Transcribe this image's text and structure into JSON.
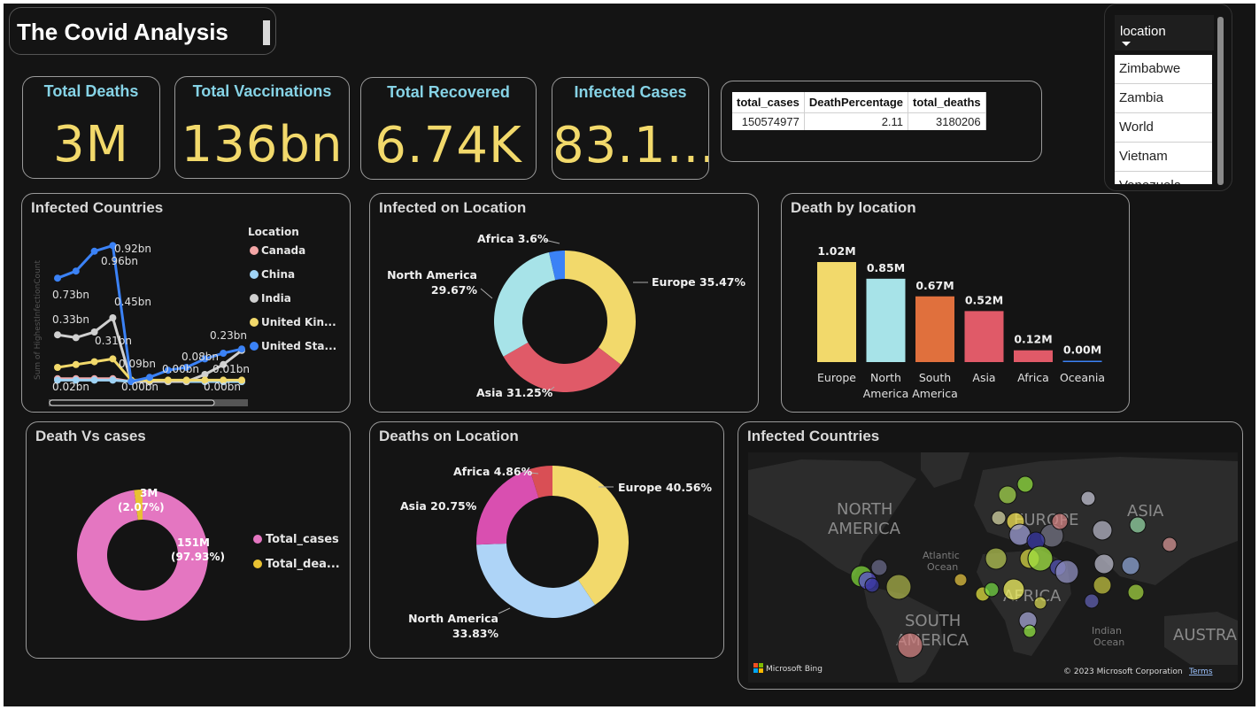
{
  "header": {
    "title": "The Covid Analysis"
  },
  "kpis": [
    {
      "label": "Total Deaths",
      "value": "3M"
    },
    {
      "label": "Total Vaccinations",
      "value": "136bn"
    },
    {
      "label": "Total Recovered",
      "value": "6.74K"
    },
    {
      "label": "Infected Cases",
      "value": "83.1..."
    }
  ],
  "summary_table": {
    "headers": [
      "total_cases",
      "DeathPercentage",
      "total_deaths"
    ],
    "row": [
      "150574977",
      "2.11",
      "3180206"
    ]
  },
  "slicer": {
    "title": "location",
    "items": [
      "Zimbabwe",
      "Zambia",
      "World",
      "Vietnam",
      "Venezuela"
    ]
  },
  "colors": {
    "background": "#141414",
    "kpi_label": "#86d3e6",
    "kpi_value": "#f2d96b",
    "europe": "#f2d96b",
    "north_america": "#a7e3e8",
    "south_america": "#e0703d",
    "asia": "#e05a68",
    "africa": "#e05a68",
    "oceania": "#3b82f6",
    "total_cases": "#e476c1",
    "total_deaths": "#e8c132"
  },
  "chart_data": [
    {
      "id": "infected-countries-line",
      "type": "line",
      "title": "Infected Countries",
      "ylabel": "Sum of HighestInfectionCount",
      "legend_title": "Location",
      "legend_position": "right",
      "ylim": [
        0,
        1.0
      ],
      "x": [
        1,
        2,
        3,
        4,
        5,
        6,
        7,
        8,
        9,
        10,
        11
      ],
      "series": [
        {
          "name": "Canada",
          "color": "#f4a6a6",
          "values": [
            0.02,
            0.02,
            0.02,
            0.02,
            0.0,
            0.0,
            0.0,
            0.0,
            0.0,
            0.0,
            0.0
          ]
        },
        {
          "name": "China",
          "color": "#9fd3f5",
          "values": [
            0.01,
            0.01,
            0.01,
            0.01,
            0.0,
            0.0,
            0.0,
            0.0,
            0.0,
            0.0,
            0.0
          ]
        },
        {
          "name": "India",
          "color": "#d0d0d0",
          "values": [
            0.33,
            0.31,
            0.35,
            0.45,
            0.0,
            0.0,
            0.0,
            0.0,
            0.05,
            0.12,
            0.22
          ]
        },
        {
          "name": "United Kin...",
          "color": "#f2d96b",
          "values": [
            0.1,
            0.12,
            0.14,
            0.16,
            0.01,
            0.01,
            0.01,
            0.01,
            0.01,
            0.01,
            0.01
          ]
        },
        {
          "name": "United Sta...",
          "color": "#3b82f6",
          "values": [
            0.73,
            0.78,
            0.92,
            0.96,
            0.0,
            0.03,
            0.08,
            0.1,
            0.16,
            0.2,
            0.23
          ]
        }
      ],
      "point_labels": [
        "0.92bn",
        "0.96bn",
        "0.73bn",
        "0.45bn",
        "0.33bn",
        "0.31bn",
        "0.23bn",
        "0.08bn",
        "0.00bn",
        "0.01bn",
        "0.09bn",
        "0.02bn",
        "0.00bn",
        "0.00bn"
      ]
    },
    {
      "id": "infected-on-location",
      "type": "pie",
      "title": "Infected on Location",
      "slices": [
        {
          "name": "Europe",
          "value": 35.47,
          "label": "Europe 35.47%",
          "color": "#f2d96b"
        },
        {
          "name": "Asia",
          "value": 31.25,
          "label": "Asia 31.25%",
          "color": "#e05a68"
        },
        {
          "name": "North America",
          "value": 29.67,
          "label": "North America 29.67%",
          "color": "#a7e3e8"
        },
        {
          "name": "Africa",
          "value": 3.6,
          "label": "Africa 3.6%",
          "color": "#3b82f6"
        }
      ]
    },
    {
      "id": "death-by-location",
      "type": "bar",
      "title": "Death by location",
      "categories": [
        "Europe",
        "North America",
        "South America",
        "Asia",
        "Africa",
        "Oceania"
      ],
      "category_lines": [
        [
          "Europe"
        ],
        [
          "North",
          "America"
        ],
        [
          "South",
          "America"
        ],
        [
          "Asia"
        ],
        [
          "Africa"
        ],
        [
          "Oceania"
        ]
      ],
      "values": [
        1.02,
        0.85,
        0.67,
        0.52,
        0.12,
        0.0
      ],
      "value_labels": [
        "1.02M",
        "0.85M",
        "0.67M",
        "0.52M",
        "0.12M",
        "0.00M"
      ],
      "colors": [
        "#f2d96b",
        "#a7e3e8",
        "#e0703d",
        "#e05a68",
        "#e05a68",
        "#3b82f6"
      ],
      "ylim": [
        0,
        1.02
      ]
    },
    {
      "id": "death-vs-cases",
      "type": "pie",
      "title": "Death Vs cases",
      "legend_position": "right",
      "slices": [
        {
          "name": "Total_cases",
          "value": 97.93,
          "label": "151M",
          "sublabel": "(97.93%)",
          "color": "#e476c1"
        },
        {
          "name": "Total_dea...",
          "value": 2.07,
          "label": "3M",
          "sublabel": "(2.07%)",
          "color": "#e8c132"
        }
      ]
    },
    {
      "id": "deaths-on-location",
      "type": "pie",
      "title": "Deaths on Location",
      "slices": [
        {
          "name": "Europe",
          "value": 40.56,
          "label": "Europe 40.56%",
          "color": "#f2d96b"
        },
        {
          "name": "North America",
          "value": 33.83,
          "label": "North America 33.83%",
          "color": "#aed4f7"
        },
        {
          "name": "Asia",
          "value": 20.75,
          "label": "Asia 20.75%",
          "color": "#d94fb0"
        },
        {
          "name": "Africa",
          "value": 4.86,
          "label": "Africa 4.86%",
          "color": "#d94f55"
        }
      ]
    }
  ],
  "map": {
    "title": "Infected Countries",
    "labels": [
      "NORTH",
      "AMERICA",
      "SOUTH",
      "AMERICA",
      "EUROPE",
      "AFRICA",
      "ASIA",
      "AUSTRAL",
      "Atlantic",
      "Ocean",
      "Indian",
      "Ocean"
    ],
    "attribution": "Microsoft Bing",
    "copyright": "© 2023 Microsoft Corporation",
    "terms": "Terms"
  }
}
